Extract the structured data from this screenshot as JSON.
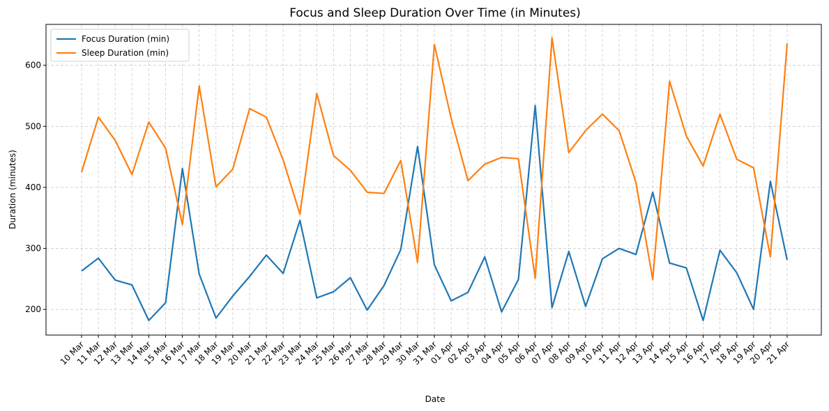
{
  "chart_data": {
    "type": "line",
    "title": "Focus and Sleep Duration Over Time (in Minutes)",
    "xlabel": "Date",
    "ylabel": "Duration (minutes)",
    "ylim": [
      158,
      667
    ],
    "yticks": [
      200,
      300,
      400,
      500,
      600
    ],
    "grid": true,
    "legend_position": "top-left",
    "categories": [
      "10 Mar",
      "11 Mar",
      "12 Mar",
      "13 Mar",
      "14 Mar",
      "15 Mar",
      "16 Mar",
      "17 Mar",
      "18 Mar",
      "19 Mar",
      "20 Mar",
      "21 Mar",
      "22 Mar",
      "23 Mar",
      "24 Mar",
      "25 Mar",
      "26 Mar",
      "27 Mar",
      "28 Mar",
      "29 Mar",
      "30 Mar",
      "31 Mar",
      "01 Apr",
      "02 Apr",
      "03 Apr",
      "04 Apr",
      "05 Apr",
      "06 Apr",
      "07 Apr",
      "08 Apr",
      "09 Apr",
      "10 Apr",
      "11 Apr",
      "12 Apr",
      "13 Apr",
      "14 Apr",
      "15 Apr",
      "16 Apr",
      "17 Apr",
      "18 Apr",
      "19 Apr",
      "20 Apr",
      "21 Apr"
    ],
    "series": [
      {
        "name": "Focus Duration (min)",
        "color": "#1f77b4",
        "values": [
          263,
          284,
          248,
          240,
          182,
          211,
          431,
          258,
          186,
          222,
          254,
          289,
          259,
          346,
          219,
          229,
          252,
          199,
          239,
          298,
          467,
          273,
          214,
          228,
          286,
          196,
          249,
          534,
          203,
          295,
          205,
          283,
          300,
          290,
          392,
          276,
          268,
          182,
          297,
          260,
          200,
          410,
          281
        ]
      },
      {
        "name": "Sleep Duration (min)",
        "color": "#ff7f0e",
        "values": [
          425,
          515,
          477,
          421,
          507,
          464,
          339,
          566,
          401,
          430,
          529,
          515,
          445,
          356,
          554,
          452,
          428,
          392,
          390,
          444,
          277,
          634,
          513,
          411,
          438,
          449,
          447,
          251,
          645,
          457,
          493,
          520,
          493,
          408,
          249,
          574,
          484,
          435,
          520,
          446,
          432,
          286,
          636
        ]
      }
    ]
  }
}
